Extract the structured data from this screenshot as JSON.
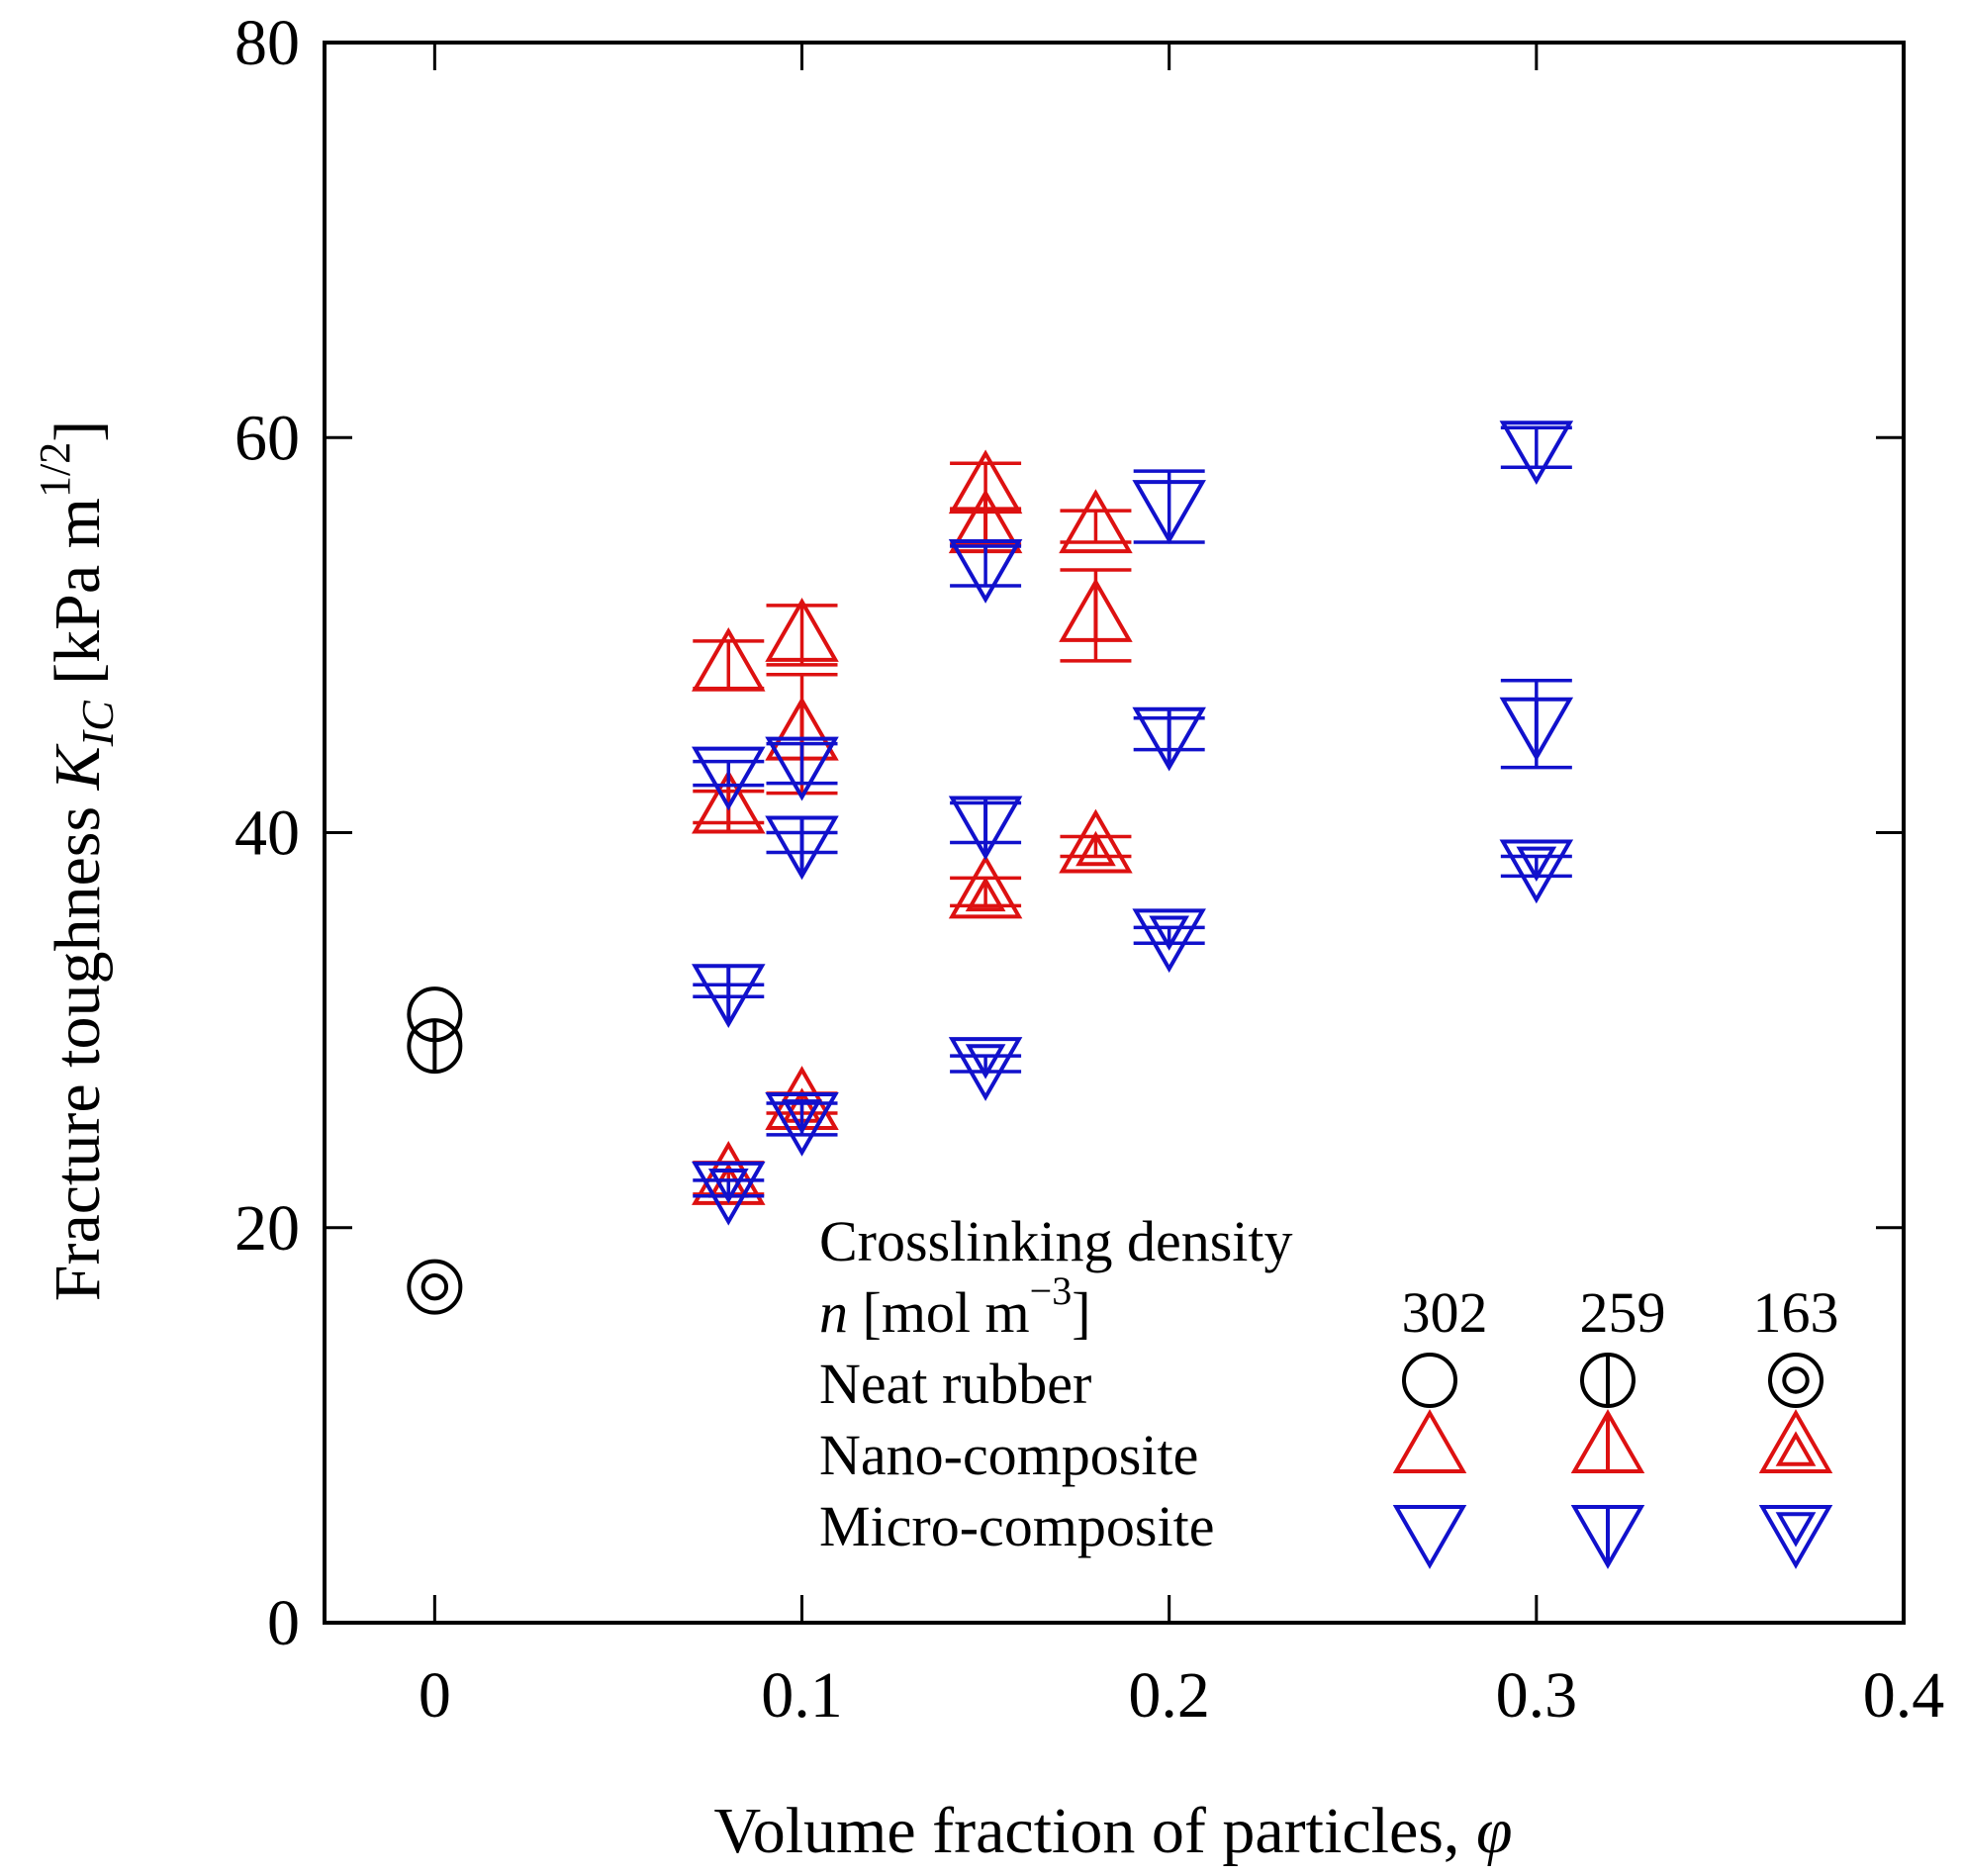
{
  "chart_data": {
    "type": "scatter",
    "title": "",
    "xlabel": "Volume fraction of particles, φ",
    "ylabel": "Fracture toughness K_IC [kPa m^1/2]",
    "ylabel_parts": {
      "pre": "Fracture toughness ",
      "symbol": "K",
      "subscript": "IC",
      "unit_pre": " [kPa m",
      "unit_sup": "1/2",
      "unit_post": "]"
    },
    "xlabel_parts": {
      "pre": "Volume fraction of particles, ",
      "symbol": "φ"
    },
    "xlim": [
      -0.03,
      0.4
    ],
    "ylim": [
      0,
      80
    ],
    "xticks": [
      0,
      0.1,
      0.2,
      0.3,
      0.4
    ],
    "xtick_labels": [
      "0",
      "0.1",
      "0.2",
      "0.3",
      "0.4"
    ],
    "yticks": [
      0,
      20,
      40,
      60,
      80
    ],
    "ytick_labels": [
      "0",
      "20",
      "40",
      "60",
      "80"
    ],
    "grid": false,
    "legend": {
      "placement": "bottom-right",
      "title": "Crosslinking density",
      "unit_symbol": "n",
      "unit_pre": " [mol m",
      "unit_sup": "−3",
      "unit_post": "]",
      "columns": [
        "302",
        "259",
        "163"
      ],
      "rows": [
        "Neat rubber",
        "Nano-composite",
        "Micro-composite"
      ]
    },
    "marker_styles": {
      "302": "plain",
      "259": "bar",
      "163": "double"
    },
    "series": [
      {
        "group": "Neat rubber",
        "density": "302",
        "marker": "circle",
        "color": "#000000",
        "points": [
          {
            "x": 0,
            "y": 30.8,
            "err": 0
          }
        ]
      },
      {
        "group": "Neat rubber",
        "density": "259",
        "marker": "circle",
        "color": "#000000",
        "points": [
          {
            "x": 0,
            "y": 29.2,
            "err": 0
          }
        ]
      },
      {
        "group": "Neat rubber",
        "density": "163",
        "marker": "circle",
        "color": "#000000",
        "points": [
          {
            "x": 0,
            "y": 17.0,
            "err": 0
          }
        ]
      },
      {
        "group": "Nano-composite",
        "density": "302",
        "marker": "triangle-up",
        "color": "#dd1111",
        "points": [
          {
            "x": 0.08,
            "y": 48.5,
            "err": 1.2
          },
          {
            "x": 0.1,
            "y": 50.0,
            "err": 1.5
          },
          {
            "x": 0.15,
            "y": 57.5,
            "err": 1.2
          },
          {
            "x": 0.18,
            "y": 55.5,
            "err": 0.8
          }
        ]
      },
      {
        "group": "Nano-composite",
        "density": "259",
        "marker": "triangle-up",
        "color": "#dd1111",
        "points": [
          {
            "x": 0.08,
            "y": 41.3,
            "err": 0.8
          },
          {
            "x": 0.1,
            "y": 45.0,
            "err": 3.0
          },
          {
            "x": 0.15,
            "y": 55.5,
            "err": 0.9
          },
          {
            "x": 0.18,
            "y": 51.0,
            "err": 2.3
          }
        ]
      },
      {
        "group": "Nano-composite",
        "density": "163",
        "marker": "triangle-up",
        "color": "#dd1111",
        "points": [
          {
            "x": 0.08,
            "y": 22.5,
            "err": 0.8
          },
          {
            "x": 0.1,
            "y": 26.3,
            "err": 0.5
          },
          {
            "x": 0.15,
            "y": 37.0,
            "err": 0.7
          },
          {
            "x": 0.18,
            "y": 39.3,
            "err": 0.5
          }
        ]
      },
      {
        "group": "Micro-composite",
        "density": "302",
        "marker": "triangle-down",
        "color": "#1111cc",
        "points": [
          {
            "x": 0.08,
            "y": 43.0,
            "err": 0.6
          },
          {
            "x": 0.1,
            "y": 43.5,
            "err": 1.0
          },
          {
            "x": 0.15,
            "y": 53.5,
            "err": 1.0
          },
          {
            "x": 0.2,
            "y": 56.5,
            "err": 1.8
          },
          {
            "x": 0.3,
            "y": 59.5,
            "err": 1.0
          }
        ]
      },
      {
        "group": "Micro-composite",
        "density": "259",
        "marker": "triangle-down",
        "color": "#1111cc",
        "points": [
          {
            "x": 0.08,
            "y": 32.0,
            "err": 0.3
          },
          {
            "x": 0.1,
            "y": 39.5,
            "err": 0.5
          },
          {
            "x": 0.15,
            "y": 40.5,
            "err": 1.0
          },
          {
            "x": 0.2,
            "y": 45.0,
            "err": 0.8
          },
          {
            "x": 0.3,
            "y": 45.5,
            "err": 2.2
          }
        ]
      },
      {
        "group": "Micro-composite",
        "density": "163",
        "marker": "triangle-down",
        "color": "#1111cc",
        "points": [
          {
            "x": 0.08,
            "y": 22.0,
            "err": 0.4
          },
          {
            "x": 0.1,
            "y": 25.5,
            "err": 0.8
          },
          {
            "x": 0.15,
            "y": 28.3,
            "err": 0.4
          },
          {
            "x": 0.2,
            "y": 34.8,
            "err": 0.4
          },
          {
            "x": 0.3,
            "y": 38.3,
            "err": 0.5
          }
        ]
      }
    ]
  }
}
